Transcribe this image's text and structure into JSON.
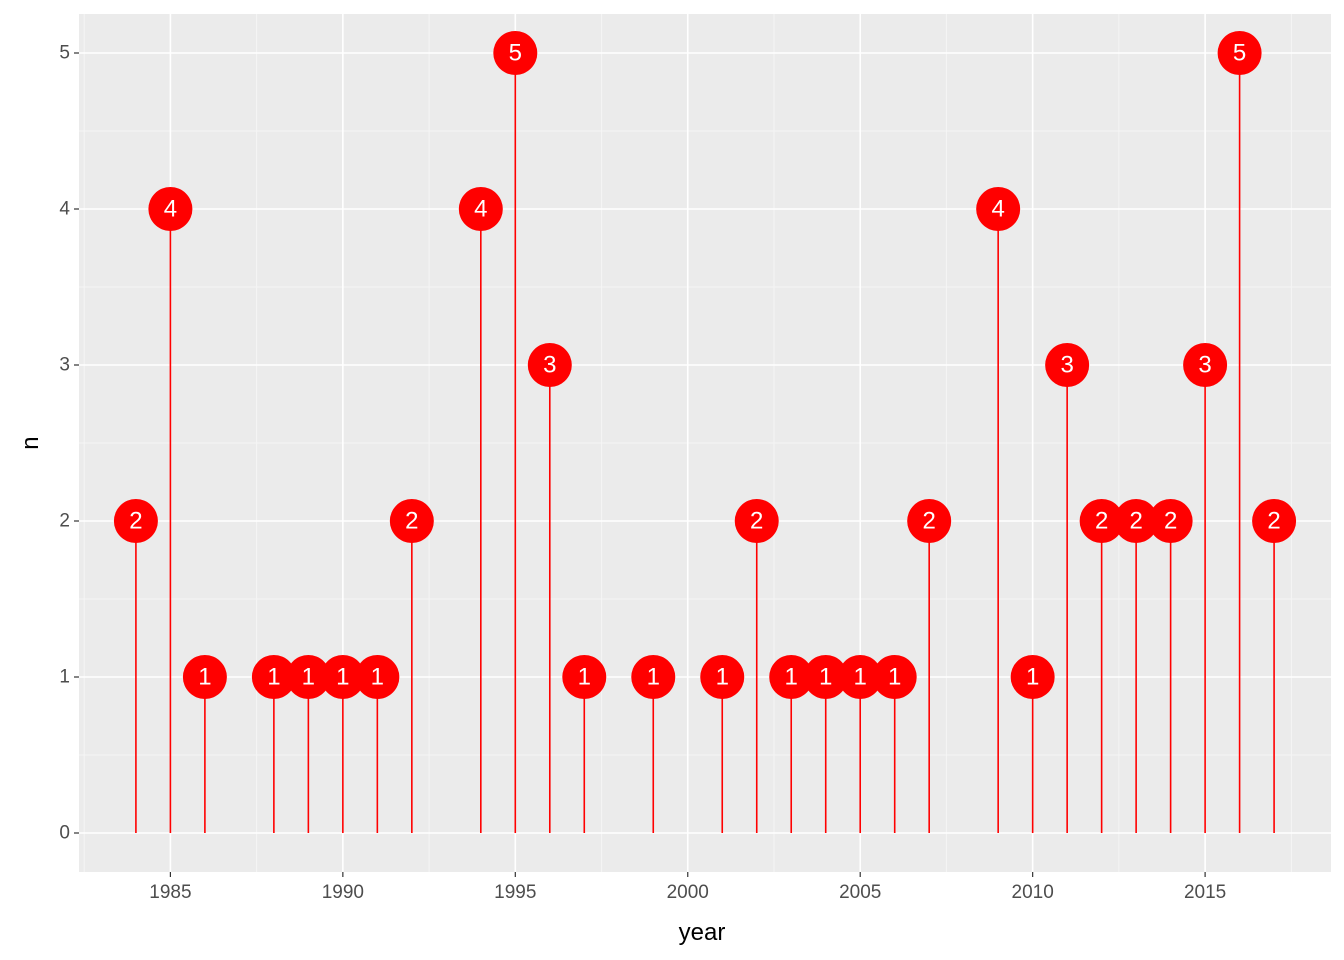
{
  "chart_data": {
    "type": "lollipop",
    "xlabel": "year",
    "ylabel": "n",
    "xlim": [
      1982.5,
      1918.5
    ],
    "ylim": [
      -0.25,
      5.25
    ],
    "x_ticks": [
      1985,
      1990,
      1995,
      2000,
      2005,
      2010,
      2015
    ],
    "x_tick_labels": [
      "1985",
      "1990",
      "1995",
      "2000",
      "2005",
      "2010",
      "2015"
    ],
    "y_ticks": [
      0,
      1,
      2,
      3,
      4,
      5
    ],
    "y_tick_labels": [
      "0",
      "1",
      "2",
      "3",
      "4",
      "5"
    ],
    "grid": true,
    "legend": "none",
    "colors": {
      "panel": "#EBEBEB",
      "grid_major": "#FFFFFF",
      "grid_minor": "#F5F5F5",
      "stem": "#FF0000",
      "point": "#FF0000",
      "label_text": "#FFFFFF",
      "tick_text": "#4D4D4D",
      "tick_mark": "#333333"
    },
    "points": [
      {
        "year": 1984,
        "n": 2,
        "label": "2"
      },
      {
        "year": 1985,
        "n": 4,
        "label": "4"
      },
      {
        "year": 1986,
        "n": 1,
        "label": "1"
      },
      {
        "year": 1988,
        "n": 1,
        "label": "1"
      },
      {
        "year": 1989,
        "n": 1,
        "label": "1"
      },
      {
        "year": 1990,
        "n": 1,
        "label": "1"
      },
      {
        "year": 1991,
        "n": 1,
        "label": "1"
      },
      {
        "year": 1992,
        "n": 2,
        "label": "2"
      },
      {
        "year": 1994,
        "n": 4,
        "label": "4"
      },
      {
        "year": 1995,
        "n": 5,
        "label": "5"
      },
      {
        "year": 1996,
        "n": 3,
        "label": "3"
      },
      {
        "year": 1997,
        "n": 1,
        "label": "1"
      },
      {
        "year": 1999,
        "n": 1,
        "label": "1"
      },
      {
        "year": 2001,
        "n": 1,
        "label": "1"
      },
      {
        "year": 2002,
        "n": 2,
        "label": "2"
      },
      {
        "year": 2003,
        "n": 1,
        "label": "1"
      },
      {
        "year": 2004,
        "n": 1,
        "label": "1"
      },
      {
        "year": 2005,
        "n": 1,
        "label": "1"
      },
      {
        "year": 2006,
        "n": 1,
        "label": "1"
      },
      {
        "year": 2007,
        "n": 2,
        "label": "2"
      },
      {
        "year": 2009,
        "n": 4,
        "label": "4"
      },
      {
        "year": 2010,
        "n": 1,
        "label": "1"
      },
      {
        "year": 2011,
        "n": 3,
        "label": "3"
      },
      {
        "year": 2012,
        "n": 2,
        "label": "2"
      },
      {
        "year": 2013,
        "n": 2,
        "label": "2"
      },
      {
        "year": 2014,
        "n": 2,
        "label": "2"
      },
      {
        "year": 2015,
        "n": 3,
        "label": "3"
      },
      {
        "year": 2016,
        "n": 5,
        "label": "5"
      },
      {
        "year": 2017,
        "n": 2,
        "label": "2"
      }
    ]
  }
}
